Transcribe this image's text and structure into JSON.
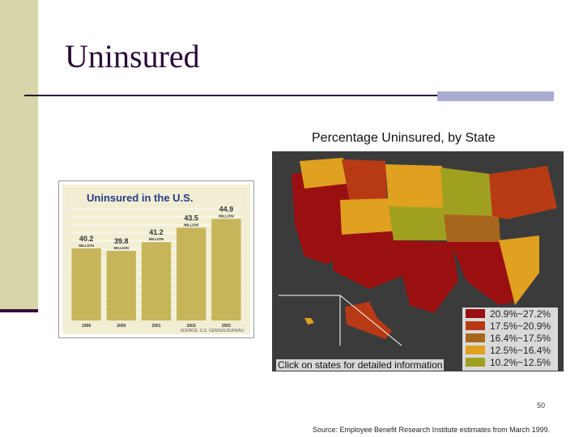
{
  "slide": {
    "title": "Uninsured",
    "page_number": "50",
    "source": "Source: Employee Benefit Research Institute estimates from March 1999."
  },
  "map": {
    "title": "Percentage Uninsured, by State",
    "link_text": "Click on states for detailed information",
    "legend": [
      {
        "label": "20.9%~27.2%",
        "color": "#9a1010"
      },
      {
        "label": "17.5%~20.9%",
        "color": "#b83a14"
      },
      {
        "label": "16.4%~17.5%",
        "color": "#a8661c"
      },
      {
        "label": "12.5%~16.4%",
        "color": "#e0a020"
      },
      {
        "label": "10.2%~12.5%",
        "color": "#a0a020"
      }
    ]
  },
  "chart_data": {
    "type": "bar",
    "title": "Uninsured in the U.S.",
    "source_note": "SOURCE: U.S. CENSUS BUREAU",
    "categories": [
      "1999",
      "2000",
      "2001",
      "2002",
      "2003"
    ],
    "values": [
      40.2,
      39.8,
      41.2,
      43.5,
      44.9
    ],
    "value_labels": [
      "40.2",
      "39.8",
      "41.2",
      "43.5",
      "44.9"
    ],
    "unit_label": "MILLION",
    "ylim": [
      30,
      46
    ]
  }
}
